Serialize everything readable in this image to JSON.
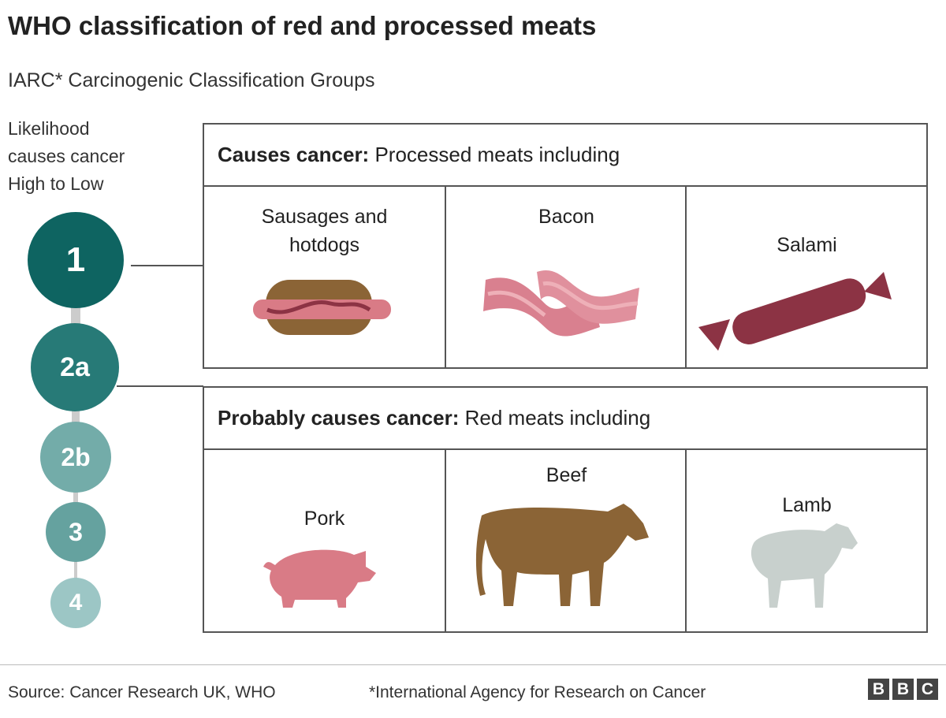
{
  "title": "WHO classification of red and processed meats",
  "subtitle": "IARC* Carcinogenic Classification Groups",
  "likelihood": [
    "Likelihood",
    "causes cancer",
    "High to Low"
  ],
  "groups": [
    {
      "label": "1",
      "color": "#0e6461"
    },
    {
      "label": "2a",
      "color": "#277a77"
    },
    {
      "label": "2b",
      "color": "#73aca9"
    },
    {
      "label": "3",
      "color": "#65a29f"
    },
    {
      "label": "4",
      "color": "#9cc6c5"
    }
  ],
  "box1": {
    "bold": "Causes cancer:",
    "rest": " Processed meats including",
    "items": [
      {
        "label": "Sausages and hotdogs",
        "icon": "hotdog-icon"
      },
      {
        "label": "Bacon",
        "icon": "bacon-icon"
      },
      {
        "label": "Salami",
        "icon": "salami-icon"
      }
    ]
  },
  "box2": {
    "bold": "Probably causes cancer:",
    "rest": " Red meats including",
    "items": [
      {
        "label": "Pork",
        "icon": "pig-icon"
      },
      {
        "label": "Beef",
        "icon": "cow-icon"
      },
      {
        "label": "Lamb",
        "icon": "sheep-icon"
      }
    ]
  },
  "footer": {
    "source": "Source: Cancer Research UK, WHO",
    "note": "*International Agency for Research on Cancer",
    "logo": [
      "B",
      "B",
      "C"
    ]
  }
}
